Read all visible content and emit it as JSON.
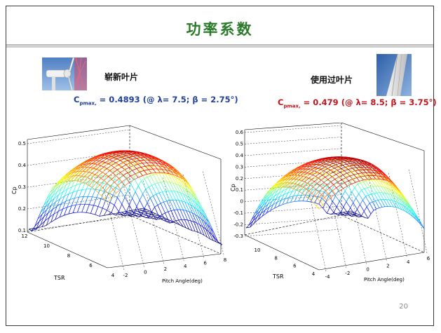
{
  "slide": {
    "title": "功率系数",
    "page_number": "20"
  },
  "left": {
    "label": "崭新叶片",
    "cp_prefix": "C",
    "cp_sub": "pmax,",
    "cp_value": "= 0.4893 (@ λ= 7.5; β = 2.75°)",
    "color": "#1f3f9a",
    "photo_icon": "wind-turbine-photo",
    "plot": {
      "z_ticks": [
        "0.5",
        "0.4",
        "0.3",
        "0.2",
        "0.1"
      ],
      "z_label": "Cp",
      "tsr_ticks": [
        "12",
        "10",
        "8",
        "6",
        "4"
      ],
      "tsr_label": "TSR",
      "pitch_ticks": [
        "-2",
        "0",
        "2",
        "4",
        "6",
        "8"
      ],
      "pitch_label": "Pitch Angle(deg)"
    }
  },
  "right": {
    "label": "使用过叶片",
    "cp_prefix": "C",
    "cp_sub": "pmax,",
    "cp_value": "= 0.479 (@ λ= 8.5; β = 3.75°)",
    "color": "#c4161c",
    "photo_icon": "used-blade-photo",
    "plot": {
      "z_ticks": [
        "0.6",
        "0.5",
        "0.4",
        "0.3",
        "0.2",
        "0.1",
        "0",
        "-0.1",
        "-0.2",
        "-0.3"
      ],
      "z_label": "Cp",
      "tsr_ticks": [
        "10",
        "8",
        "6",
        "4"
      ],
      "tsr_label": "TSR",
      "pitch_ticks": [
        "-4",
        "-2",
        "0",
        "2",
        "4",
        "6"
      ],
      "pitch_label": "Pitch Angle(deg)"
    }
  }
}
